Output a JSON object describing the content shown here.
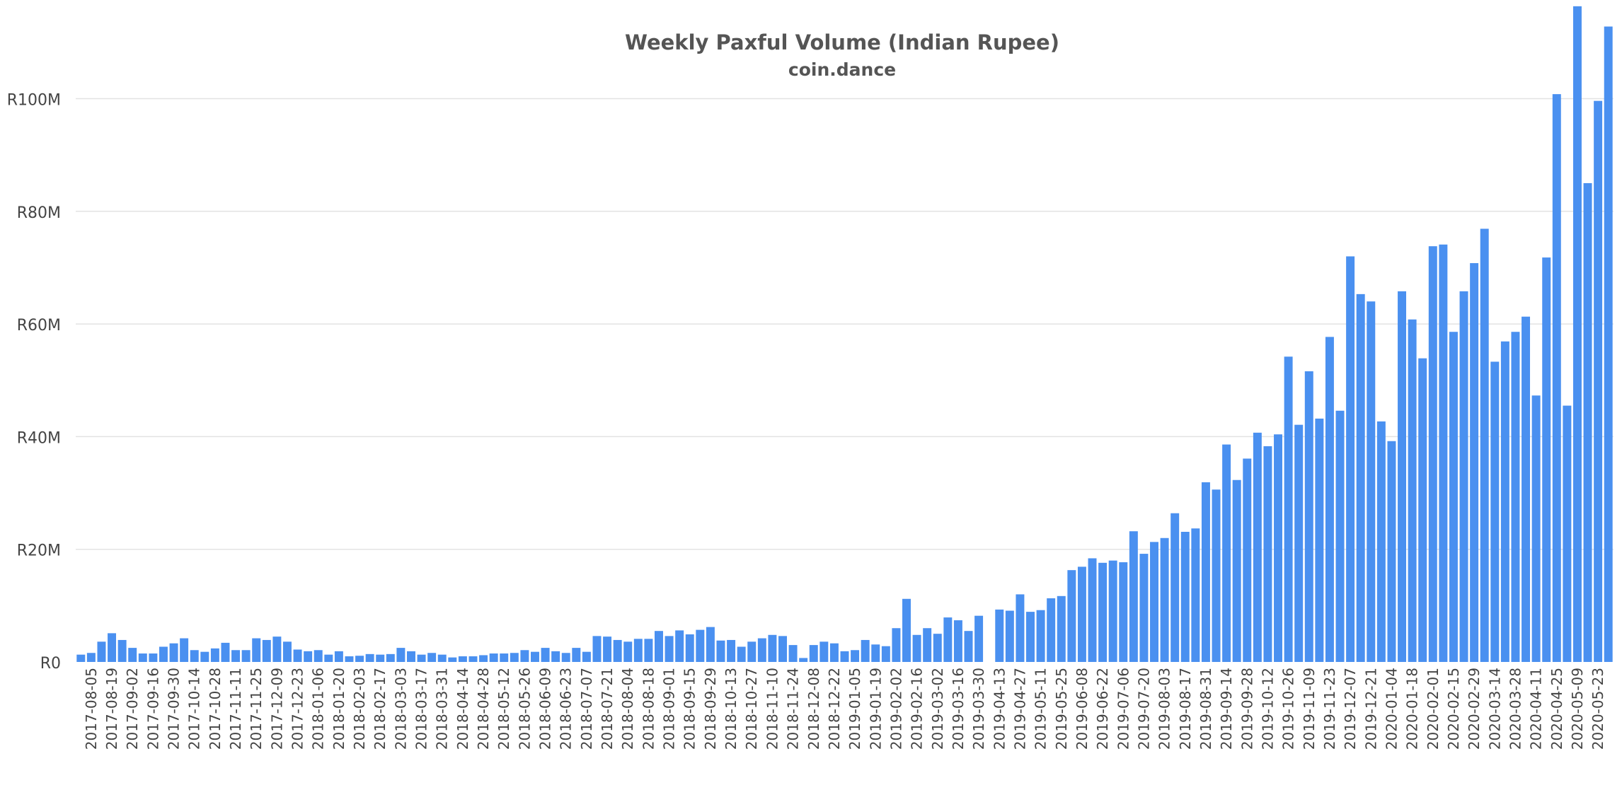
{
  "chart_data": {
    "type": "bar",
    "title": "Weekly Paxful Volume (Indian Rupee)",
    "subtitle": "coin.dance",
    "xlabel": "",
    "ylabel": "",
    "ylim": [
      0,
      115000000
    ],
    "yticks": [
      0,
      20000000,
      40000000,
      60000000,
      80000000,
      100000000
    ],
    "ytick_labels": [
      "R0",
      "R20M",
      "R40M",
      "R60M",
      "R80M",
      "R100M"
    ],
    "grid": true,
    "bar_color": "#4a90f0",
    "categories": [
      "2017-07-29",
      "2017-08-05",
      "2017-08-12",
      "2017-08-19",
      "2017-08-26",
      "2017-09-02",
      "2017-09-09",
      "2017-09-16",
      "2017-09-23",
      "2017-09-30",
      "2017-10-07",
      "2017-10-14",
      "2017-10-21",
      "2017-10-28",
      "2017-11-04",
      "2017-11-11",
      "2017-11-18",
      "2017-11-25",
      "2017-12-02",
      "2017-12-09",
      "2017-12-16",
      "2017-12-23",
      "2017-12-30",
      "2018-01-06",
      "2018-01-13",
      "2018-01-20",
      "2018-01-27",
      "2018-02-03",
      "2018-02-10",
      "2018-02-17",
      "2018-02-24",
      "2018-03-03",
      "2018-03-10",
      "2018-03-17",
      "2018-03-24",
      "2018-03-31",
      "2018-04-07",
      "2018-04-14",
      "2018-04-21",
      "2018-04-28",
      "2018-05-05",
      "2018-05-12",
      "2018-05-19",
      "2018-05-26",
      "2018-06-02",
      "2018-06-09",
      "2018-06-16",
      "2018-06-23",
      "2018-06-30",
      "2018-07-07",
      "2018-07-14",
      "2018-07-21",
      "2018-07-28",
      "2018-08-04",
      "2018-08-11",
      "2018-08-18",
      "2018-08-25",
      "2018-09-01",
      "2018-09-08",
      "2018-09-15",
      "2018-09-22",
      "2018-09-29",
      "2018-10-06",
      "2018-10-13",
      "2018-10-20",
      "2018-10-27",
      "2018-11-03",
      "2018-11-10",
      "2018-11-17",
      "2018-11-24",
      "2018-12-01",
      "2018-12-08",
      "2018-12-15",
      "2018-12-22",
      "2018-12-29",
      "2019-01-05",
      "2019-01-12",
      "2019-01-19",
      "2019-01-26",
      "2019-02-02",
      "2019-02-09",
      "2019-02-16",
      "2019-02-23",
      "2019-03-02",
      "2019-03-09",
      "2019-03-16",
      "2019-03-23",
      "2019-03-30",
      "2019-04-06",
      "2019-04-13",
      "2019-04-20",
      "2019-04-27",
      "2019-05-04",
      "2019-05-11",
      "2019-05-18",
      "2019-05-25",
      "2019-06-01",
      "2019-06-08",
      "2019-06-15",
      "2019-06-22",
      "2019-06-29",
      "2019-07-06",
      "2019-07-13",
      "2019-07-20",
      "2019-07-27",
      "2019-08-03",
      "2019-08-10",
      "2019-08-17",
      "2019-08-24",
      "2019-08-31",
      "2019-09-07",
      "2019-09-14",
      "2019-09-21",
      "2019-09-28",
      "2019-10-05",
      "2019-10-12",
      "2019-10-19",
      "2019-10-26",
      "2019-11-02",
      "2019-11-09",
      "2019-11-16",
      "2019-11-23",
      "2019-11-30",
      "2019-12-07",
      "2019-12-14",
      "2019-12-21",
      "2019-12-28",
      "2020-01-04",
      "2020-01-11",
      "2020-01-18",
      "2020-01-25",
      "2020-02-01",
      "2020-02-08",
      "2020-02-15",
      "2020-02-22",
      "2020-02-29",
      "2020-03-07",
      "2020-03-14",
      "2020-03-21",
      "2020-03-28",
      "2020-04-04",
      "2020-04-11",
      "2020-04-18",
      "2020-04-25",
      "2020-05-02",
      "2020-05-09",
      "2020-05-16",
      "2020-05-23",
      "2020-05-30"
    ],
    "x_tick_labels": [
      "2017-08-05",
      "2017-08-19",
      "2017-09-02",
      "2017-09-16",
      "2017-09-30",
      "2017-10-14",
      "2017-10-28",
      "2017-11-11",
      "2017-11-25",
      "2017-12-09",
      "2017-12-23",
      "2018-01-06",
      "2018-01-20",
      "2018-02-03",
      "2018-02-17",
      "2018-03-03",
      "2018-03-17",
      "2018-03-31",
      "2018-04-14",
      "2018-04-28",
      "2018-05-12",
      "2018-05-26",
      "2018-06-09",
      "2018-06-23",
      "2018-07-07",
      "2018-07-21",
      "2018-08-04",
      "2018-08-18",
      "2018-09-01",
      "2018-09-15",
      "2018-09-29",
      "2018-10-13",
      "2018-10-27",
      "2018-11-10",
      "2018-11-24",
      "2018-12-08",
      "2018-12-22",
      "2019-01-05",
      "2019-01-19",
      "2019-02-02",
      "2019-02-16",
      "2019-03-02",
      "2019-03-16",
      "2019-03-30",
      "2019-04-13",
      "2019-04-27",
      "2019-05-11",
      "2019-05-25",
      "2019-06-08",
      "2019-06-22",
      "2019-07-06",
      "2019-07-20",
      "2019-08-03",
      "2019-08-17",
      "2019-08-31",
      "2019-09-14",
      "2019-09-28",
      "2019-10-12",
      "2019-10-26",
      "2019-11-09",
      "2019-11-23",
      "2019-12-07",
      "2019-12-21",
      "2020-01-04",
      "2020-01-18",
      "2020-02-01",
      "2020-02-15",
      "2020-02-29",
      "2020-03-14",
      "2020-03-28",
      "2020-04-11",
      "2020-04-25",
      "2020-05-09",
      "2020-05-23"
    ],
    "values": [
      1300000,
      1600000,
      3600000,
      5100000,
      3900000,
      2500000,
      1500000,
      1500000,
      2700000,
      3300000,
      4200000,
      2100000,
      1800000,
      2400000,
      3400000,
      2100000,
      2100000,
      4200000,
      3900000,
      4500000,
      3600000,
      2200000,
      1900000,
      2100000,
      1300000,
      1900000,
      1000000,
      1100000,
      1400000,
      1300000,
      1400000,
      2500000,
      1900000,
      1300000,
      1600000,
      1300000,
      800000,
      1000000,
      1000000,
      1200000,
      1500000,
      1500000,
      1600000,
      2100000,
      1800000,
      2500000,
      1900000,
      1600000,
      2500000,
      1800000,
      4600000,
      4500000,
      3900000,
      3600000,
      4100000,
      4100000,
      5500000,
      4600000,
      5600000,
      4900000,
      5700000,
      6200000,
      3800000,
      3900000,
      2700000,
      3600000,
      4200000,
      4800000,
      4600000,
      3000000,
      700000,
      3000000,
      3600000,
      3300000,
      1900000,
      2100000,
      3900000,
      3100000,
      2800000,
      6000000,
      11200000,
      4800000,
      6000000,
      5000000,
      7900000,
      7400000,
      5500000,
      8200000,
      0,
      9300000,
      9100000,
      12000000,
      8900000,
      9200000,
      11300000,
      11700000,
      16300000,
      16900000,
      18400000,
      17600000,
      18000000,
      17700000,
      23200000,
      19200000,
      21300000,
      22000000,
      26400000,
      23100000,
      23700000,
      31900000,
      30600000,
      38600000,
      32300000,
      36100000,
      40700000,
      38300000,
      40400000,
      54200000,
      42100000,
      51600000,
      43200000,
      57700000,
      44600000,
      72000000,
      65300000,
      64000000,
      42700000,
      39200000,
      65800000,
      60800000,
      53900000,
      73800000,
      74100000,
      58600000,
      65800000,
      70800000,
      76900000,
      53300000,
      56900000,
      58600000,
      61300000,
      47300000,
      71800000,
      100800000,
      45500000,
      116400000,
      85000000,
      99600000,
      112800000
    ]
  }
}
